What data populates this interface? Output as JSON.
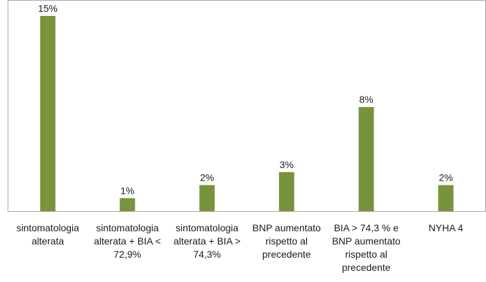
{
  "chart_data": {
    "type": "bar",
    "categories": [
      [
        "sintomatologia",
        "alterata"
      ],
      [
        "sintomatologia",
        "alterata + BIA <",
        "72,9%"
      ],
      [
        "sintomatologia",
        "alterata + BIA >",
        "74,3%"
      ],
      [
        "BNP aumentato",
        "rispetto al",
        "precedente"
      ],
      [
        "BIA > 74,3 % e",
        "BNP aumentato",
        "rispetto al",
        "precedente"
      ],
      [
        "NYHA 4"
      ]
    ],
    "values": [
      15,
      1,
      2,
      3,
      8,
      2
    ],
    "data_labels": [
      "15%",
      "1%",
      "2%",
      "3%",
      "8%",
      "2%"
    ],
    "unit": "%",
    "ylim": [
      0,
      15
    ],
    "grid": false,
    "legend": "none",
    "colors": {
      "bar": "#77933C",
      "axis": "#A6A6A6",
      "plot_border": "#A6A6A6",
      "text": "#1a1a1a"
    }
  }
}
